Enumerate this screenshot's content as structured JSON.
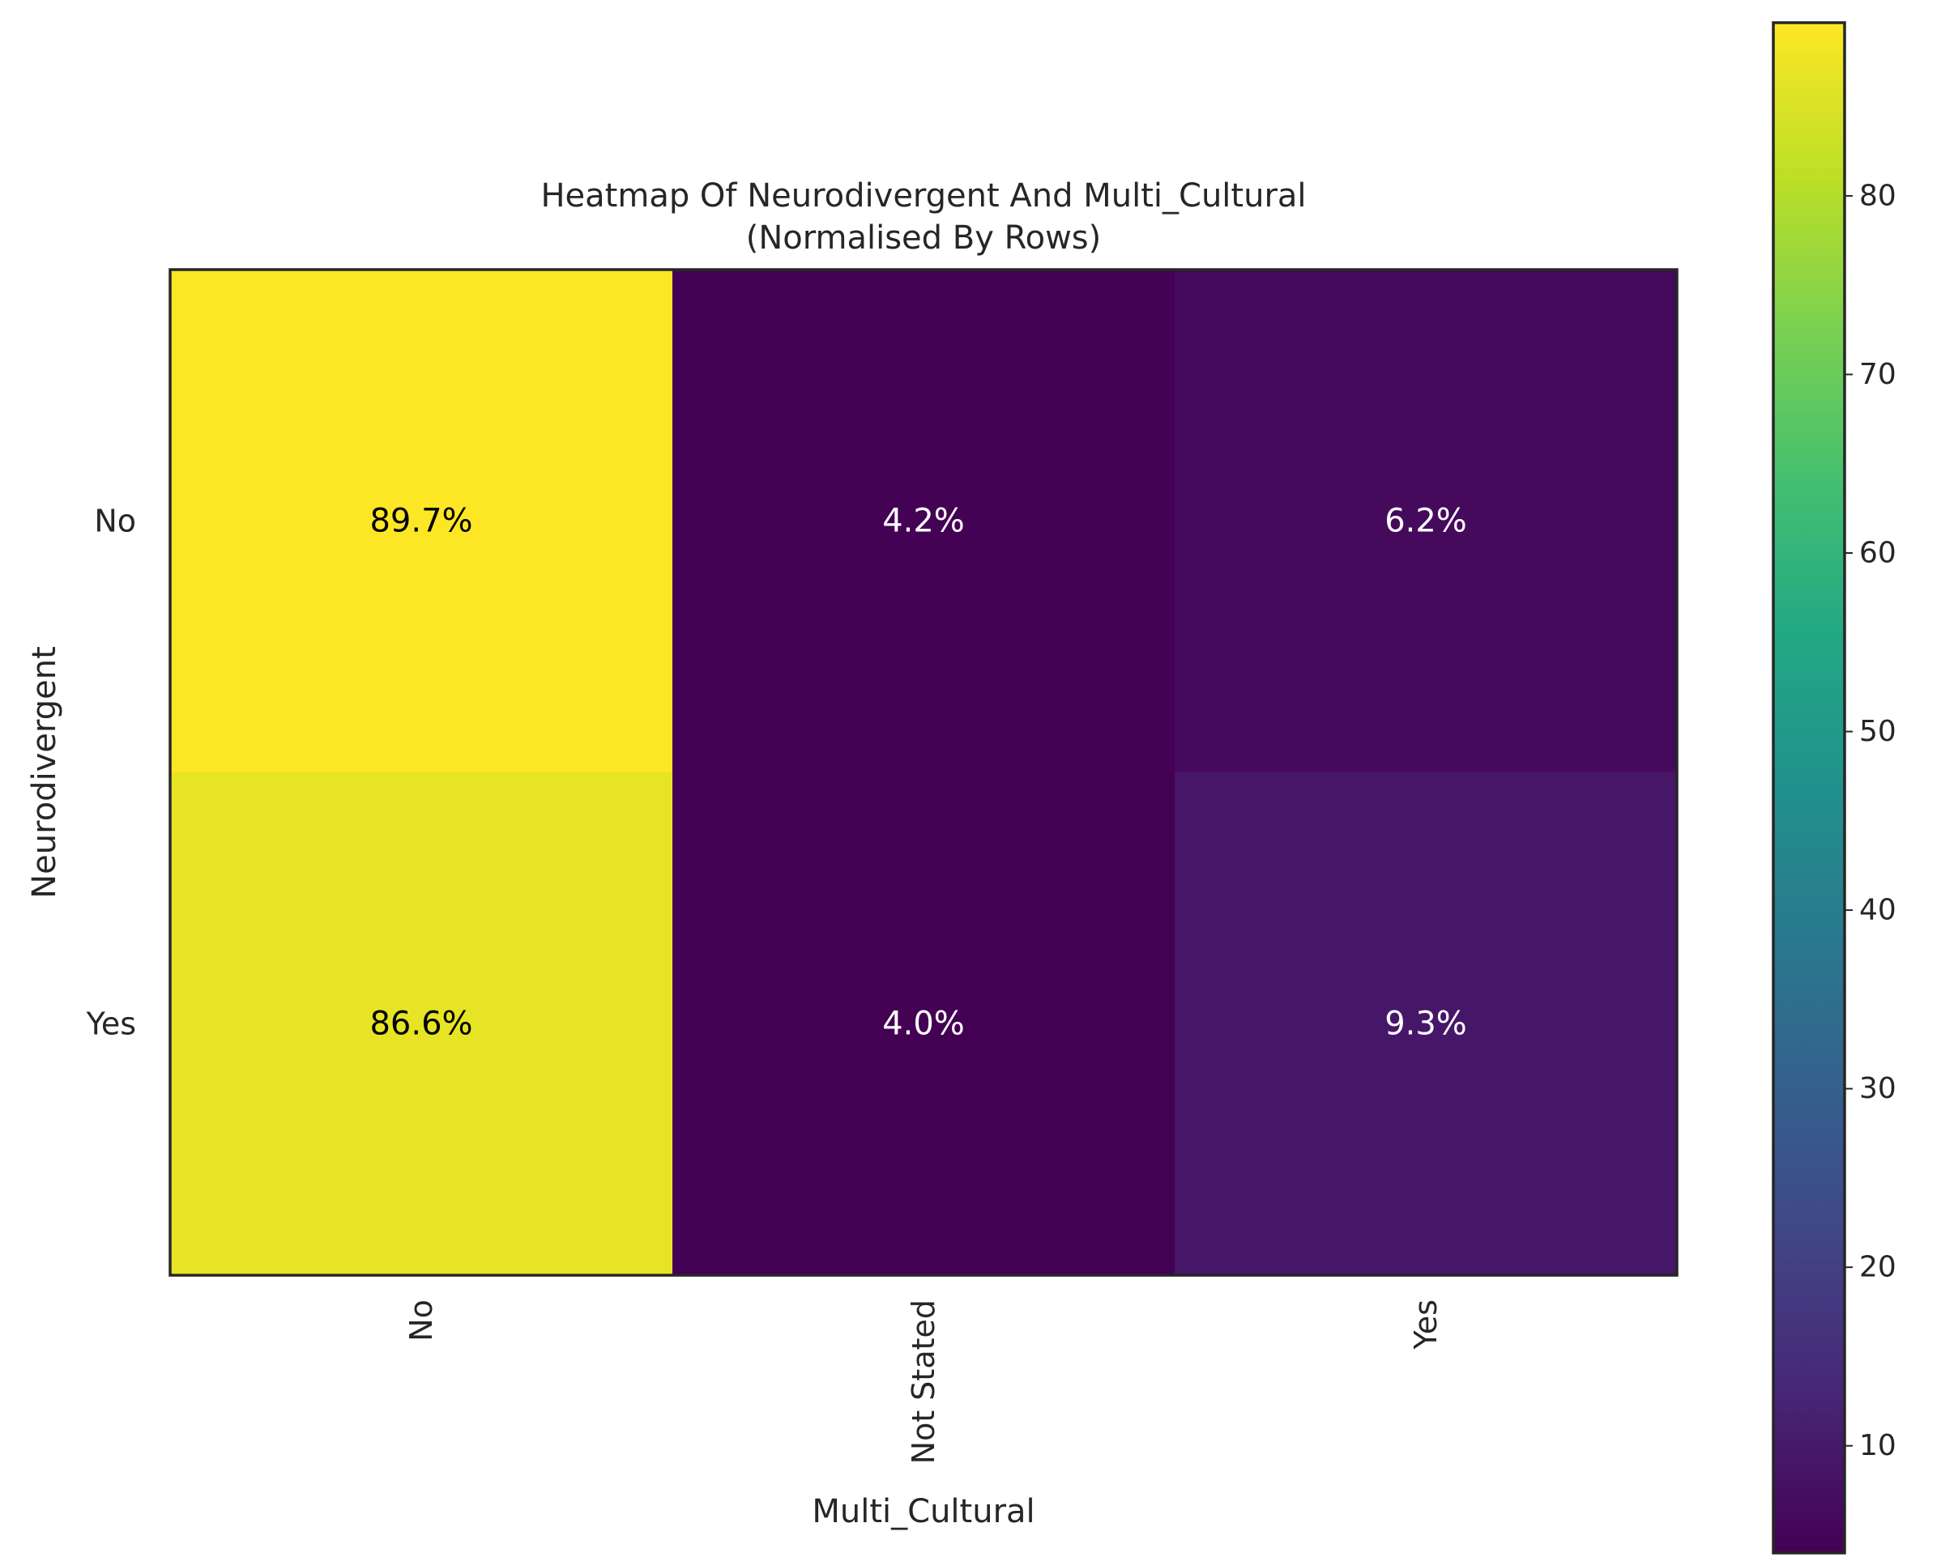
{
  "chart_data": {
    "type": "heatmap",
    "title": "Heatmap Of Neurodivergent And Multi_Cultural",
    "subtitle": "(Normalised By Rows)",
    "xlabel": "Multi_Cultural",
    "ylabel": "Neurodivergent",
    "x_categories": [
      "No",
      "Not Stated",
      "Yes"
    ],
    "y_categories": [
      "No",
      "Yes"
    ],
    "values": [
      [
        89.7,
        4.2,
        6.2
      ],
      [
        86.6,
        4.0,
        9.3
      ]
    ],
    "cell_labels": [
      [
        "89.7%",
        "4.2%",
        "6.2%"
      ],
      [
        "86.6%",
        "4.0%",
        "9.3%"
      ]
    ],
    "colormap": "viridis",
    "colorbar": {
      "min": 4.0,
      "max": 89.7,
      "ticks": [
        10,
        20,
        30,
        40,
        50,
        60,
        70,
        80
      ],
      "tick_labels": [
        "10",
        "20",
        "30",
        "40",
        "50",
        "60",
        "70",
        "80"
      ]
    },
    "grid": false,
    "legend_placement": "right (colorbar)"
  }
}
